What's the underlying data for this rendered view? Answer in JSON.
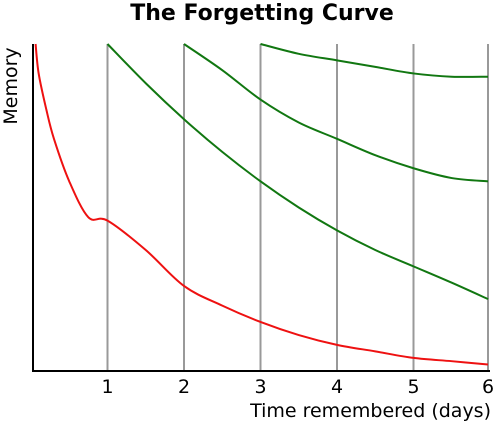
{
  "chart_data": {
    "type": "line",
    "title": "The Forgetting Curve",
    "xlabel": "Time remembered (days)",
    "ylabel": "Memory",
    "xlim": [
      0,
      6
    ],
    "ylim": [
      0,
      100
    ],
    "x_ticks": [
      "1",
      "2",
      "3",
      "4",
      "5",
      "6"
    ],
    "grid": "vertical lines at each day",
    "y_ticks_shown": false,
    "legend": "none",
    "colors": {
      "forgetting": "#ee1111",
      "review": "#117711",
      "grid": "#999999",
      "axis": "#000000"
    },
    "series": [
      {
        "color": "#ee1111",
        "x": [
          0.06,
          0.1,
          0.2,
          0.3,
          0.5,
          0.75,
          1.0,
          1.5,
          2.0,
          2.5,
          3.0,
          3.5,
          4.0,
          4.5,
          5.0,
          5.5,
          6.0
        ],
        "y": [
          100,
          91,
          80,
          71,
          58,
          47,
          46,
          37,
          26,
          20,
          15,
          11,
          8,
          6,
          4,
          3,
          2
        ]
      },
      {
        "color": "#117711",
        "x": [
          1.0,
          1.5,
          2.0,
          2.5,
          3.0,
          3.5,
          4.0,
          4.5,
          5.0,
          5.5,
          6.0
        ],
        "y": [
          100,
          88,
          77,
          67,
          58,
          50,
          43,
          37,
          32,
          27,
          22
        ]
      },
      {
        "color": "#117711",
        "x": [
          2.0,
          2.5,
          3.0,
          3.5,
          4.0,
          4.5,
          5.0,
          5.5,
          6.0
        ],
        "y": [
          100,
          92,
          83,
          76,
          71,
          66,
          62,
          59,
          58
        ]
      },
      {
        "color": "#117711",
        "x": [
          3.0,
          3.5,
          4.0,
          4.5,
          5.0,
          5.5,
          6.0
        ],
        "y": [
          100,
          97,
          95,
          93,
          91,
          90,
          90
        ]
      }
    ]
  }
}
